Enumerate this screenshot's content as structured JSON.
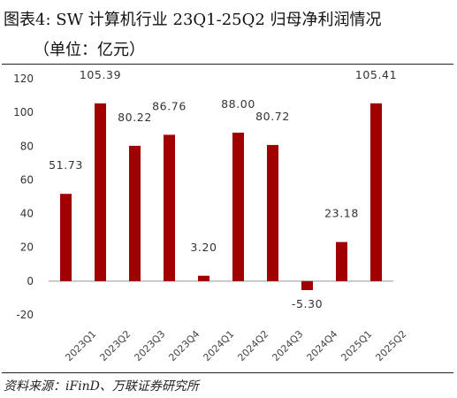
{
  "title": {
    "line1": "图表4:  SW 计算机行业 23Q1-25Q2 归母净利润情况",
    "line2": "（单位：亿元）"
  },
  "source": "资料来源：iFinD、万联证券研究所",
  "chart_data": {
    "type": "bar",
    "categories": [
      "2023Q1",
      "2023Q2",
      "2023Q3",
      "2023Q4",
      "2024Q1",
      "2024Q2",
      "2024Q3",
      "2024Q4",
      "2025Q1",
      "2025Q2"
    ],
    "values": [
      51.73,
      105.39,
      80.22,
      86.76,
      3.2,
      88.0,
      80.72,
      -5.3,
      23.18,
      105.41
    ],
    "value_labels": [
      "51.73",
      "105.39",
      "80.22",
      "86.76",
      "3.20",
      "88.00",
      "80.72",
      "-5.30",
      "23.18",
      "105.41"
    ],
    "ylim": [
      -20,
      120
    ],
    "yticks": [
      -20,
      0,
      20,
      40,
      60,
      80,
      100,
      120
    ],
    "bar_color": "#a00000",
    "grid": false,
    "legend": "none"
  }
}
